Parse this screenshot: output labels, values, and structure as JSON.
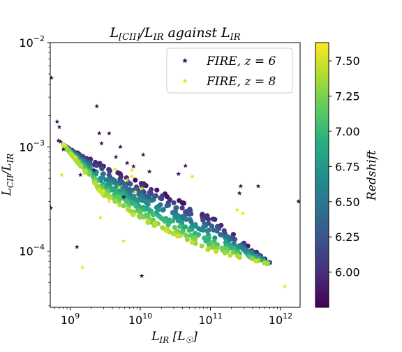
{
  "chart_data": {
    "type": "scatter",
    "title_parts": [
      "L",
      "[CII]",
      "/L",
      "IR",
      " against L",
      "IR"
    ],
    "xlabel_parts": [
      "L",
      "IR",
      " [L",
      "☉",
      "]"
    ],
    "ylabel_parts": [
      "L",
      "CII",
      "/L",
      "IR"
    ],
    "x_scale": "log",
    "y_scale": "log",
    "xlim": [
      520000000.0,
      1900000000000.0
    ],
    "ylim": [
      2.9e-05,
      0.01
    ],
    "x_ticks": [
      {
        "value": 1000000000.0,
        "base": "10",
        "exp": "9"
      },
      {
        "value": 10000000000.0,
        "base": "10",
        "exp": "10"
      },
      {
        "value": 100000000000.0,
        "base": "10",
        "exp": "11"
      },
      {
        "value": 1000000000000.0,
        "base": "10",
        "exp": "12"
      }
    ],
    "y_ticks": [
      {
        "value": 0.0001,
        "base": "10",
        "exp": "−4"
      },
      {
        "value": 0.001,
        "base": "10",
        "exp": "−3"
      },
      {
        "value": 0.01,
        "base": "10",
        "exp": "−2"
      }
    ],
    "grid": false,
    "legend": {
      "placement": "top-right",
      "entries": [
        {
          "label": "FIRE, z = 6",
          "marker": "star",
          "color": "#3b0f52"
        },
        {
          "label": "FIRE, z = 8",
          "marker": "star",
          "color": "#f2e11e"
        }
      ]
    },
    "colorbar": {
      "label": "Redshift",
      "range": [
        5.75,
        7.63
      ],
      "ticks": [
        "6.00",
        "6.25",
        "6.50",
        "6.75",
        "7.00",
        "7.25",
        "7.50"
      ],
      "tick_values": [
        6.0,
        6.25,
        6.5,
        6.75,
        7.0,
        7.25,
        7.5
      ],
      "colormap": "viridis"
    },
    "series": [
      {
        "name": "FIRE, z = 6",
        "marker": "star",
        "color": "#3b0f52",
        "points": [
          [
            540000000.0,
            0.0046
          ],
          [
            650000000.0,
            0.00175
          ],
          [
            700000000.0,
            0.00155
          ],
          [
            680000000.0,
            0.00115
          ],
          [
            730000000.0,
            0.00112
          ],
          [
            800000000.0,
            0.00095
          ],
          [
            1400000000.0,
            0.00054
          ],
          [
            530000000.0,
            0.00026
          ],
          [
            1250000000.0,
            0.00011
          ],
          [
            2400000000.0,
            0.00245
          ],
          [
            2600000000.0,
            0.00135
          ],
          [
            3600000000.0,
            0.00135
          ],
          [
            2800000000.0,
            0.00108
          ],
          [
            5200000000.0,
            0.001
          ],
          [
            4500000000.0,
            0.0008
          ],
          [
            6500000000.0,
            0.0007
          ],
          [
            2200000000.0,
            0.0006
          ],
          [
            5800000000.0,
            0.00033
          ],
          [
            10500000000.0,
            5.8e-05
          ],
          [
            13500000000.0,
            0.00058
          ],
          [
            11000000000.0,
            0.00084
          ],
          [
            44000000000.0,
            0.00066
          ],
          [
            270000000000.0,
            0.00042
          ],
          [
            260000000000.0,
            0.00036
          ],
          [
            480000000000.0,
            0.00042
          ],
          [
            1800000000000.0,
            0.0003
          ],
          [
            35000000000.0,
            0.00055
          ],
          [
            8000000000.0,
            0.00065
          ]
        ]
      },
      {
        "name": "FIRE, z = 8",
        "marker": "star",
        "color": "#f2e11e",
        "points": [
          [
            760000000.0,
            0.00054
          ],
          [
            820000000.0,
            0.00105
          ],
          [
            1200000000.0,
            0.0008
          ],
          [
            1500000000.0,
            7e-05
          ],
          [
            2700000000.0,
            0.00021
          ],
          [
            3600000000.0,
            0.0003
          ],
          [
            5000000000.0,
            0.00041
          ],
          [
            5800000000.0,
            0.000125
          ],
          [
            6500000000.0,
            0.00048
          ],
          [
            7600000000.0,
            0.0006
          ],
          [
            7600000000.0,
            0.00052
          ],
          [
            10500000000.0,
            0.0004
          ],
          [
            55000000000.0,
            0.00052
          ],
          [
            240000000000.0,
            0.00025
          ],
          [
            290000000000.0,
            0.00023
          ],
          [
            1150000000000.0,
            4.6e-05
          ],
          [
            4400000000.0,
            0.00061
          ],
          [
            3000000000.0,
            0.00038
          ],
          [
            8500000000.0,
            0.00037
          ]
        ]
      },
      {
        "name": "",
        "marker": "circle",
        "colored_by": "redshift",
        "band": {
          "x_range": [
            750000000.0,
            700000000000.0
          ],
          "n_points": 700,
          "upper": [
            [
              750000000.0,
              0.00108
            ],
            [
              1000000000.0,
              0.00095
            ],
            [
              10000000000.0,
              0.00046
            ],
            [
              100000000000.0,
              0.00022
            ],
            [
              400000000000.0,
              0.000105
            ]
          ],
          "lower": [
            [
              1100000000.0,
              0.0008
            ],
            [
              3000000000.0,
              0.00034
            ],
            [
              10000000000.0,
              0.0002
            ],
            [
              30000000000.0,
              0.000145
            ],
            [
              100000000000.0,
              0.0001
            ],
            [
              700000000000.0,
              7.5e-05
            ]
          ],
          "z_at_upper": 5.85,
          "z_at_lower": 7.45
        }
      }
    ]
  }
}
